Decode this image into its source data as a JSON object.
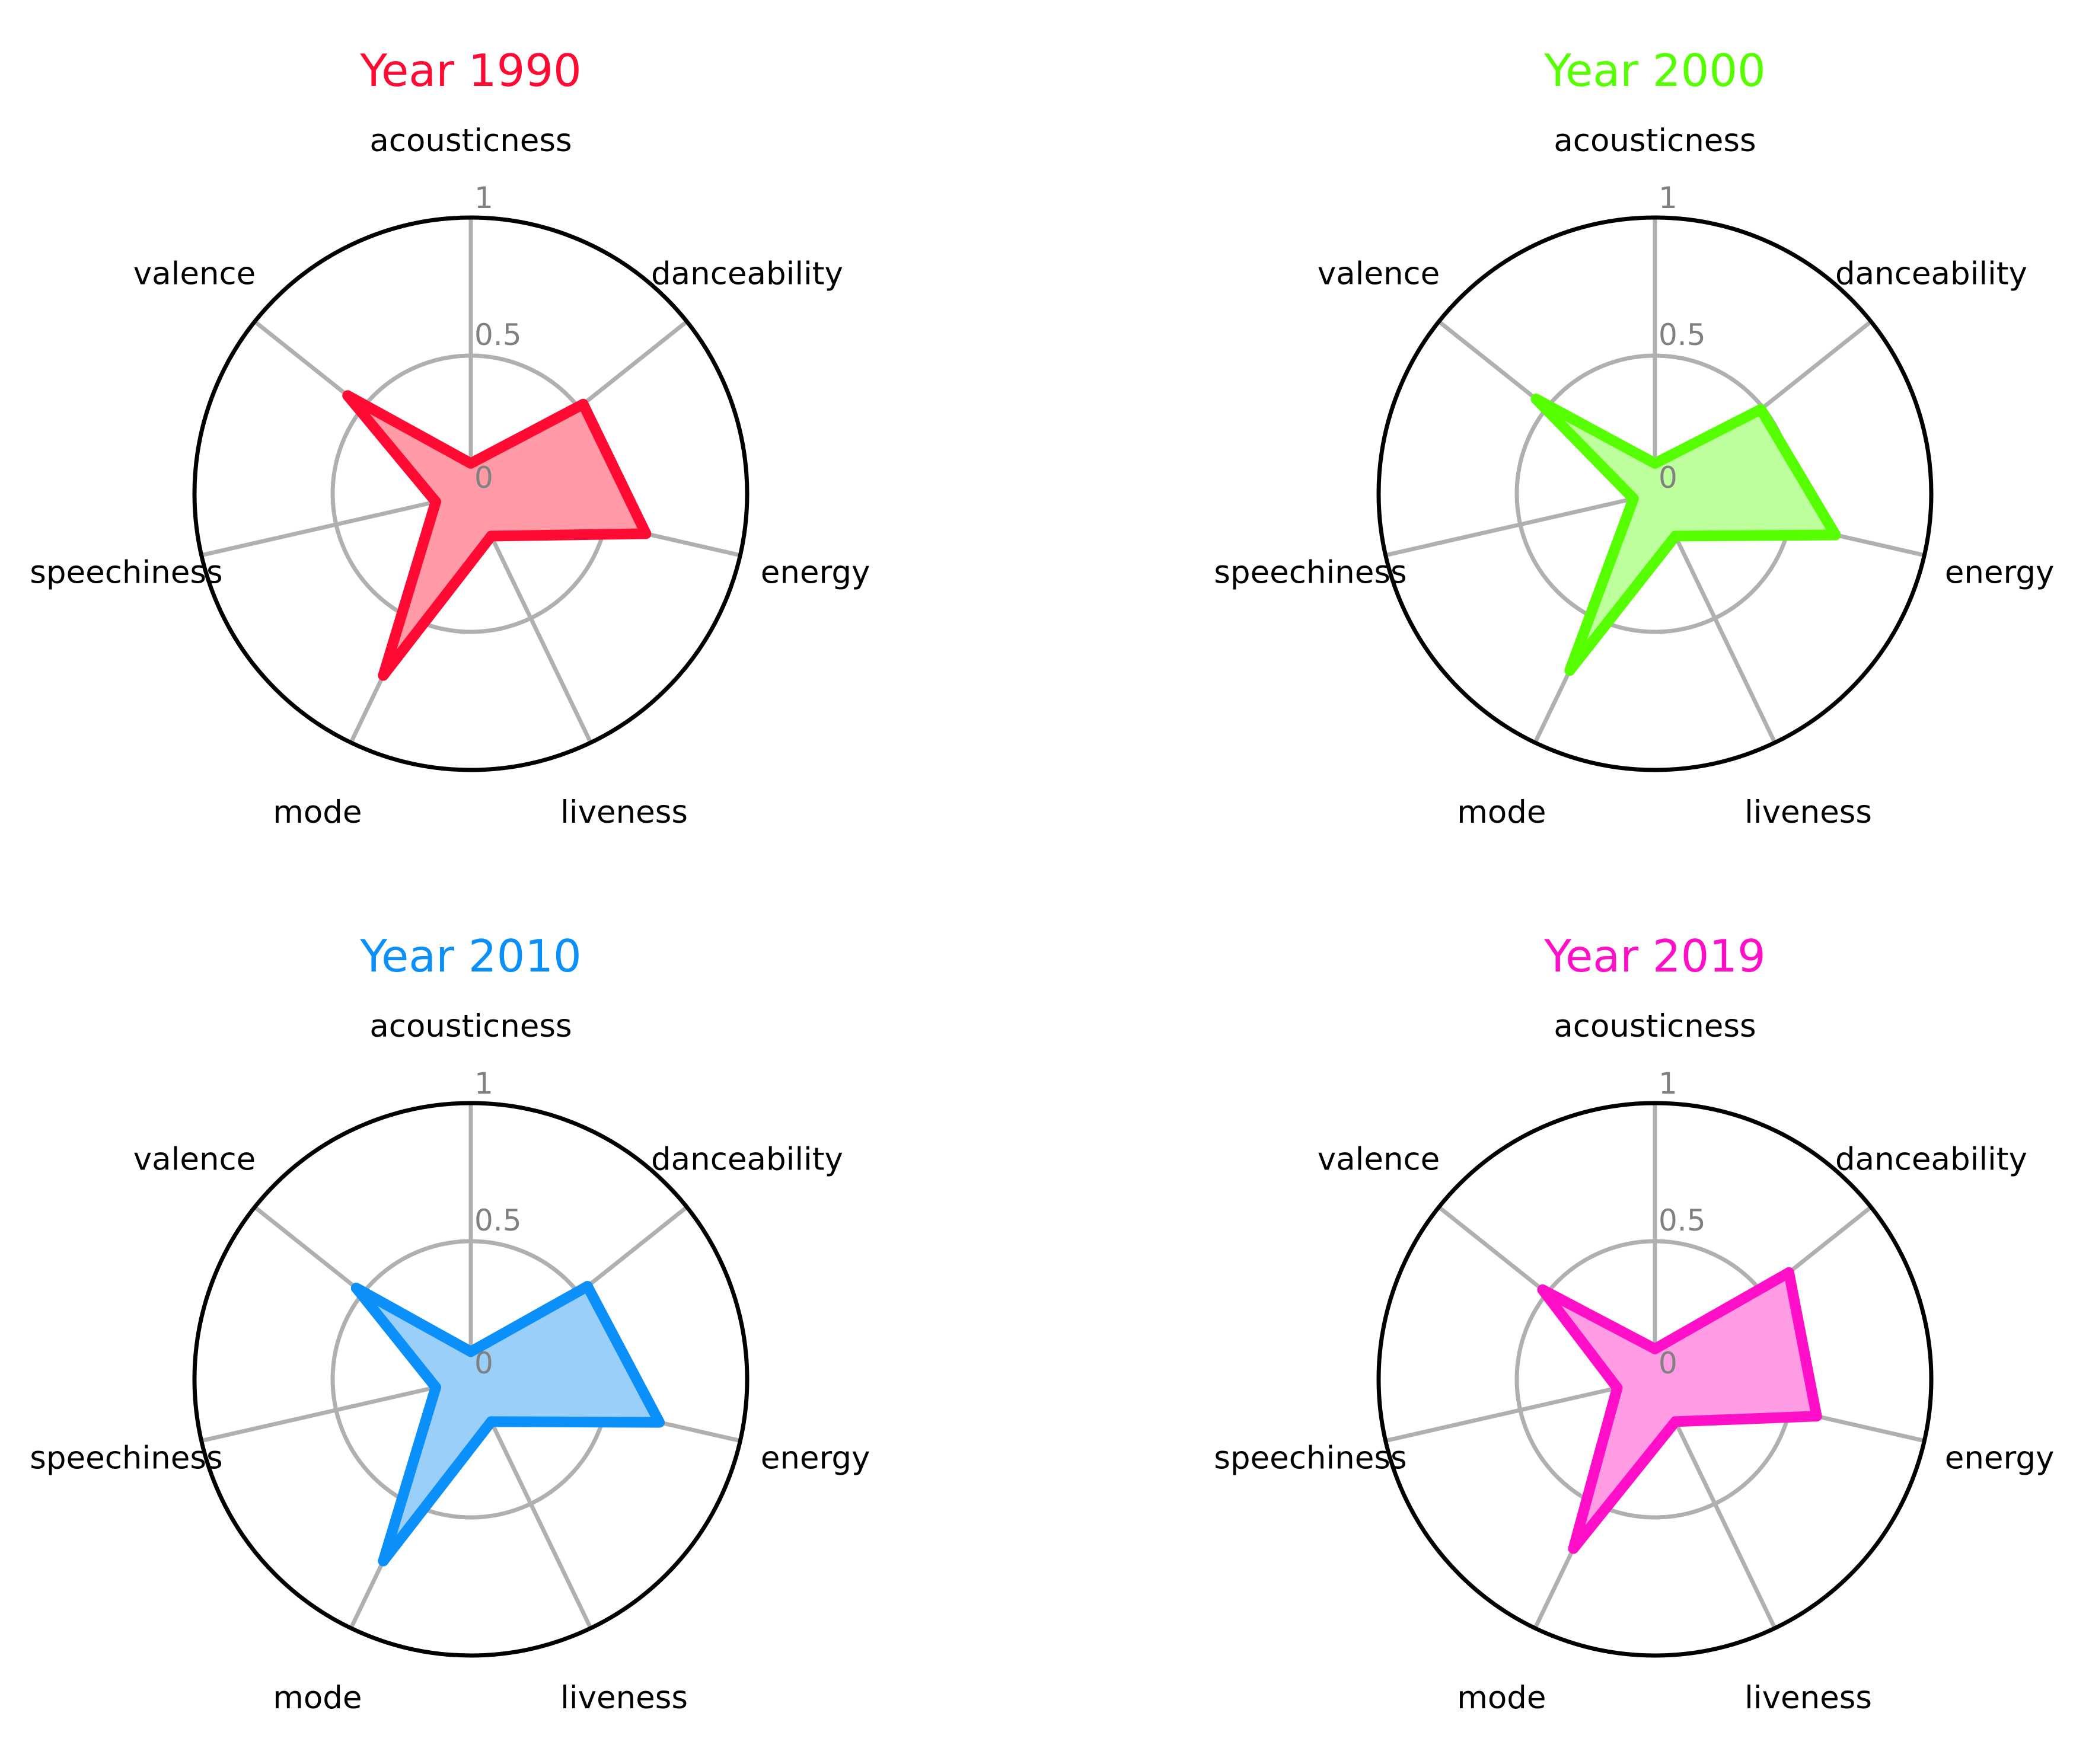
{
  "chart_data": [
    {
      "type": "radar",
      "title": "Year 1990",
      "color": "#ff0a33",
      "fill": "#ff9aa6",
      "axes": [
        "acousticness",
        "danceability",
        "energy",
        "liveness",
        "mode",
        "speechiness",
        "valence"
      ],
      "values": [
        0.11,
        0.52,
        0.65,
        0.17,
        0.73,
        0.13,
        0.57
      ],
      "rticks": [
        "0",
        "0.5",
        "1"
      ],
      "ylim": [
        0,
        1
      ]
    },
    {
      "type": "radar",
      "title": "Year 2000",
      "color": "#55ff00",
      "fill": "#bcff9c",
      "axes": [
        "acousticness",
        "danceability",
        "energy",
        "liveness",
        "mode",
        "speechiness",
        "valence"
      ],
      "values": [
        0.11,
        0.49,
        0.67,
        0.17,
        0.71,
        0.08,
        0.55
      ],
      "rticks": [
        "0",
        "0.5",
        "1"
      ],
      "ylim": [
        0,
        1
      ]
    },
    {
      "type": "radar",
      "title": "Year 2010",
      "color": "#0b8ff8",
      "fill": "#99cff9",
      "axes": [
        "acousticness",
        "danceability",
        "energy",
        "liveness",
        "mode",
        "speechiness",
        "valence"
      ],
      "values": [
        0.1,
        0.54,
        0.7,
        0.17,
        0.73,
        0.13,
        0.53
      ],
      "rticks": [
        "0",
        "0.5",
        "1"
      ],
      "ylim": [
        0,
        1
      ]
    },
    {
      "type": "radar",
      "title": "Year 2019",
      "color": "#ff0fc7",
      "fill": "#ff9ce4",
      "axes": [
        "acousticness",
        "danceability",
        "energy",
        "liveness",
        "mode",
        "speechiness",
        "valence"
      ],
      "values": [
        0.11,
        0.62,
        0.6,
        0.17,
        0.68,
        0.14,
        0.52
      ],
      "rticks": [
        "0",
        "0.5",
        "1"
      ],
      "ylim": [
        0,
        1
      ]
    }
  ]
}
